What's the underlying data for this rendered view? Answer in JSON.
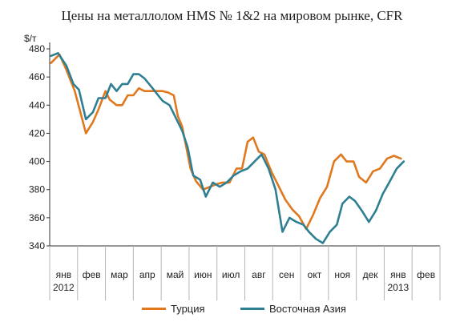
{
  "colors": {
    "turkey": "#e0781e",
    "asia": "#2f7f93",
    "axis": "#333333",
    "grid": "#b5b5b5"
  },
  "chart_data": {
    "type": "line",
    "title": "Цены на металлолом HMS № 1&2 на мировом рынке, CFR",
    "ylabel": "$/т",
    "ylim": [
      340,
      480
    ],
    "yticks": [
      340,
      360,
      380,
      400,
      420,
      440,
      460,
      480
    ],
    "month_labels": [
      "янв",
      "фев",
      "мар",
      "апр",
      "май",
      "июн",
      "июл",
      "авг",
      "сен",
      "окт",
      "ноя",
      "дек",
      "янв",
      "фев"
    ],
    "year_labels": [
      {
        "month_index": 0,
        "label": "2012"
      },
      {
        "month_index": 12,
        "label": "2013"
      }
    ],
    "x_range_months": [
      0,
      14
    ],
    "grid": false,
    "legend_position": "bottom",
    "series": [
      {
        "name": "Турция",
        "color_key": "turkey",
        "points": [
          [
            0.05,
            470
          ],
          [
            0.35,
            476
          ],
          [
            0.6,
            465
          ],
          [
            0.9,
            450
          ],
          [
            1.1,
            435
          ],
          [
            1.3,
            420
          ],
          [
            1.55,
            428
          ],
          [
            1.75,
            437
          ],
          [
            2.0,
            450
          ],
          [
            2.15,
            444
          ],
          [
            2.4,
            440
          ],
          [
            2.6,
            440
          ],
          [
            2.8,
            447
          ],
          [
            3.0,
            447
          ],
          [
            3.2,
            452
          ],
          [
            3.4,
            450
          ],
          [
            3.65,
            450
          ],
          [
            3.85,
            450
          ],
          [
            4.05,
            450
          ],
          [
            4.25,
            449
          ],
          [
            4.45,
            447
          ],
          [
            4.6,
            432
          ],
          [
            4.75,
            425
          ],
          [
            4.9,
            410
          ],
          [
            5.05,
            395
          ],
          [
            5.25,
            386
          ],
          [
            5.5,
            380
          ],
          [
            5.75,
            382
          ],
          [
            6.0,
            384
          ],
          [
            6.2,
            385
          ],
          [
            6.45,
            385
          ],
          [
            6.7,
            395
          ],
          [
            6.9,
            395
          ],
          [
            7.1,
            414
          ],
          [
            7.3,
            417
          ],
          [
            7.5,
            407
          ],
          [
            7.7,
            405
          ],
          [
            7.95,
            393
          ],
          [
            8.2,
            383
          ],
          [
            8.45,
            373
          ],
          [
            8.7,
            366
          ],
          [
            8.95,
            361
          ],
          [
            9.2,
            352
          ],
          [
            9.45,
            362
          ],
          [
            9.7,
            374
          ],
          [
            9.95,
            382
          ],
          [
            10.2,
            400
          ],
          [
            10.45,
            405
          ],
          [
            10.65,
            400
          ],
          [
            10.9,
            400
          ],
          [
            11.1,
            389
          ],
          [
            11.35,
            385
          ],
          [
            11.6,
            393
          ],
          [
            11.85,
            395
          ],
          [
            12.1,
            402
          ],
          [
            12.35,
            404
          ],
          [
            12.6,
            402
          ]
        ]
      },
      {
        "name": "Восточная Азия",
        "color_key": "asia",
        "points": [
          [
            0.05,
            475
          ],
          [
            0.3,
            477
          ],
          [
            0.6,
            468
          ],
          [
            0.85,
            455
          ],
          [
            1.05,
            451
          ],
          [
            1.3,
            430
          ],
          [
            1.55,
            435
          ],
          [
            1.75,
            445
          ],
          [
            2.0,
            445
          ],
          [
            2.2,
            455
          ],
          [
            2.4,
            450
          ],
          [
            2.6,
            455
          ],
          [
            2.8,
            455
          ],
          [
            3.0,
            462
          ],
          [
            3.2,
            462
          ],
          [
            3.4,
            459
          ],
          [
            3.65,
            453
          ],
          [
            3.85,
            448
          ],
          [
            4.05,
            443
          ],
          [
            4.3,
            440
          ],
          [
            4.5,
            432
          ],
          [
            4.75,
            422
          ],
          [
            4.95,
            410
          ],
          [
            5.15,
            390
          ],
          [
            5.4,
            387
          ],
          [
            5.6,
            375
          ],
          [
            5.85,
            385
          ],
          [
            6.1,
            382
          ],
          [
            6.35,
            385
          ],
          [
            6.6,
            390
          ],
          [
            6.85,
            393
          ],
          [
            7.1,
            395
          ],
          [
            7.35,
            400
          ],
          [
            7.6,
            405
          ],
          [
            7.85,
            395
          ],
          [
            8.1,
            380
          ],
          [
            8.35,
            350
          ],
          [
            8.6,
            360
          ],
          [
            8.85,
            357
          ],
          [
            9.1,
            355
          ],
          [
            9.3,
            350
          ],
          [
            9.55,
            345
          ],
          [
            9.8,
            342
          ],
          [
            10.05,
            350
          ],
          [
            10.3,
            355
          ],
          [
            10.5,
            370
          ],
          [
            10.75,
            375
          ],
          [
            10.95,
            372
          ],
          [
            11.2,
            365
          ],
          [
            11.45,
            357
          ],
          [
            11.7,
            365
          ],
          [
            11.95,
            377
          ],
          [
            12.15,
            384
          ],
          [
            12.45,
            395
          ],
          [
            12.7,
            400
          ]
        ]
      }
    ]
  }
}
